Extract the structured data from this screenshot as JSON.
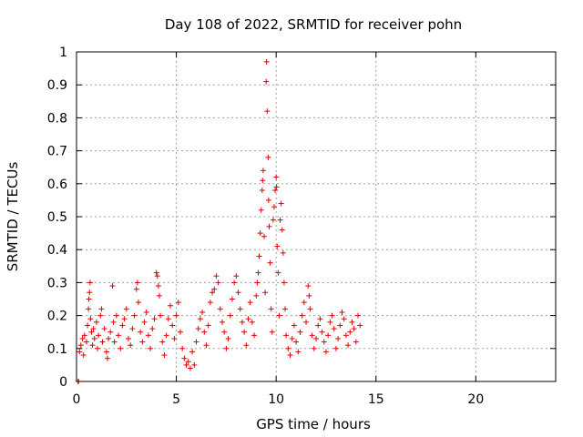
{
  "chart_data": {
    "type": "scatter",
    "title": "Day 108 of 2022, SRMTID for receiver pohn",
    "xlabel": "GPS time / hours",
    "ylabel": "SRMTID / TECUs",
    "xlim": [
      0,
      24
    ],
    "ylim": [
      0,
      1
    ],
    "xticks": [
      0,
      5,
      10,
      15,
      20
    ],
    "xtick_labels": [
      "0",
      "5",
      "10",
      "15",
      "20"
    ],
    "yticks": [
      0,
      0.1,
      0.2,
      0.3,
      0.4,
      0.5,
      0.6,
      0.7,
      0.8,
      0.9,
      1
    ],
    "ytick_labels": [
      "0",
      "0.1",
      "0.2",
      "0.3",
      "0.4",
      "0.5",
      "0.6",
      "0.7",
      "0.8",
      "0.9",
      "1"
    ],
    "grid": true,
    "marker": "+",
    "series_color": "#e00000",
    "series": [
      {
        "name": "SRMTID",
        "points": [
          [
            0.08,
            0.0
          ],
          [
            0.1,
            0.0
          ],
          [
            0.15,
            0.09
          ],
          [
            0.22,
            0.11
          ],
          [
            0.3,
            0.13
          ],
          [
            0.35,
            0.08
          ],
          [
            0.4,
            0.14
          ],
          [
            0.5,
            0.12
          ],
          [
            0.55,
            0.17
          ],
          [
            0.6,
            0.22
          ],
          [
            0.62,
            0.25
          ],
          [
            0.65,
            0.27
          ],
          [
            0.68,
            0.3
          ],
          [
            0.7,
            0.19
          ],
          [
            0.75,
            0.15
          ],
          [
            0.8,
            0.11
          ],
          [
            0.85,
            0.16
          ],
          [
            0.9,
            0.13
          ],
          [
            1.0,
            0.18
          ],
          [
            1.05,
            0.1
          ],
          [
            1.1,
            0.14
          ],
          [
            1.2,
            0.2
          ],
          [
            1.25,
            0.22
          ],
          [
            1.3,
            0.12
          ],
          [
            1.4,
            0.16
          ],
          [
            1.5,
            0.09
          ],
          [
            1.55,
            0.07
          ],
          [
            1.6,
            0.13
          ],
          [
            1.7,
            0.15
          ],
          [
            1.8,
            0.29
          ],
          [
            1.85,
            0.18
          ],
          [
            1.9,
            0.12
          ],
          [
            2.0,
            0.2
          ],
          [
            2.1,
            0.14
          ],
          [
            2.2,
            0.1
          ],
          [
            2.3,
            0.17
          ],
          [
            2.4,
            0.19
          ],
          [
            2.5,
            0.22
          ],
          [
            2.6,
            0.13
          ],
          [
            2.7,
            0.11
          ],
          [
            2.8,
            0.16
          ],
          [
            2.9,
            0.2
          ],
          [
            3.0,
            0.28
          ],
          [
            3.05,
            0.3
          ],
          [
            3.1,
            0.24
          ],
          [
            3.2,
            0.15
          ],
          [
            3.3,
            0.12
          ],
          [
            3.4,
            0.18
          ],
          [
            3.5,
            0.21
          ],
          [
            3.6,
            0.14
          ],
          [
            3.7,
            0.1
          ],
          [
            3.8,
            0.16
          ],
          [
            3.9,
            0.19
          ],
          [
            4.0,
            0.33
          ],
          [
            4.05,
            0.32
          ],
          [
            4.1,
            0.29
          ],
          [
            4.15,
            0.26
          ],
          [
            4.2,
            0.2
          ],
          [
            4.3,
            0.12
          ],
          [
            4.4,
            0.08
          ],
          [
            4.5,
            0.14
          ],
          [
            4.6,
            0.19
          ],
          [
            4.7,
            0.23
          ],
          [
            4.8,
            0.17
          ],
          [
            4.9,
            0.13
          ],
          [
            5.0,
            0.2
          ],
          [
            5.1,
            0.24
          ],
          [
            5.2,
            0.15
          ],
          [
            5.3,
            0.1
          ],
          [
            5.4,
            0.07
          ],
          [
            5.5,
            0.05
          ],
          [
            5.6,
            0.06
          ],
          [
            5.7,
            0.04
          ],
          [
            5.8,
            0.09
          ],
          [
            5.9,
            0.05
          ],
          [
            6.0,
            0.12
          ],
          [
            6.1,
            0.16
          ],
          [
            6.2,
            0.19
          ],
          [
            6.3,
            0.21
          ],
          [
            6.4,
            0.15
          ],
          [
            6.5,
            0.11
          ],
          [
            6.6,
            0.17
          ],
          [
            6.7,
            0.24
          ],
          [
            6.8,
            0.27
          ],
          [
            6.9,
            0.28
          ],
          [
            7.0,
            0.32
          ],
          [
            7.1,
            0.3
          ],
          [
            7.2,
            0.22
          ],
          [
            7.3,
            0.18
          ],
          [
            7.4,
            0.15
          ],
          [
            7.5,
            0.1
          ],
          [
            7.6,
            0.13
          ],
          [
            7.7,
            0.2
          ],
          [
            7.8,
            0.25
          ],
          [
            7.9,
            0.3
          ],
          [
            8.0,
            0.32
          ],
          [
            8.1,
            0.27
          ],
          [
            8.2,
            0.22
          ],
          [
            8.3,
            0.18
          ],
          [
            8.4,
            0.15
          ],
          [
            8.5,
            0.11
          ],
          [
            8.6,
            0.19
          ],
          [
            8.7,
            0.24
          ],
          [
            8.8,
            0.18
          ],
          [
            8.9,
            0.14
          ],
          [
            9.0,
            0.26
          ],
          [
            9.05,
            0.3
          ],
          [
            9.1,
            0.33
          ],
          [
            9.15,
            0.38
          ],
          [
            9.2,
            0.45
          ],
          [
            9.25,
            0.52
          ],
          [
            9.3,
            0.58
          ],
          [
            9.32,
            0.61
          ],
          [
            9.35,
            0.64
          ],
          [
            9.4,
            0.44
          ],
          [
            9.45,
            0.27
          ],
          [
            9.5,
            0.91
          ],
          [
            9.52,
            0.97
          ],
          [
            9.55,
            0.82
          ],
          [
            9.6,
            0.68
          ],
          [
            9.62,
            0.55
          ],
          [
            9.65,
            0.47
          ],
          [
            9.7,
            0.36
          ],
          [
            9.75,
            0.22
          ],
          [
            9.8,
            0.15
          ],
          [
            9.85,
            0.49
          ],
          [
            9.9,
            0.53
          ],
          [
            9.95,
            0.58
          ],
          [
            10.0,
            0.62
          ],
          [
            10.02,
            0.59
          ],
          [
            10.05,
            0.41
          ],
          [
            10.1,
            0.33
          ],
          [
            10.15,
            0.2
          ],
          [
            10.2,
            0.49
          ],
          [
            10.25,
            0.54
          ],
          [
            10.3,
            0.46
          ],
          [
            10.35,
            0.39
          ],
          [
            10.4,
            0.3
          ],
          [
            10.45,
            0.22
          ],
          [
            10.5,
            0.14
          ],
          [
            10.6,
            0.1
          ],
          [
            10.7,
            0.08
          ],
          [
            10.8,
            0.13
          ],
          [
            10.9,
            0.17
          ],
          [
            11.0,
            0.12
          ],
          [
            11.1,
            0.09
          ],
          [
            11.2,
            0.15
          ],
          [
            11.3,
            0.2
          ],
          [
            11.4,
            0.24
          ],
          [
            11.5,
            0.18
          ],
          [
            11.6,
            0.29
          ],
          [
            11.65,
            0.26
          ],
          [
            11.7,
            0.22
          ],
          [
            11.8,
            0.14
          ],
          [
            11.9,
            0.1
          ],
          [
            12.0,
            0.13
          ],
          [
            12.1,
            0.17
          ],
          [
            12.2,
            0.19
          ],
          [
            12.3,
            0.15
          ],
          [
            12.4,
            0.12
          ],
          [
            12.5,
            0.09
          ],
          [
            12.6,
            0.14
          ],
          [
            12.7,
            0.18
          ],
          [
            12.8,
            0.2
          ],
          [
            12.9,
            0.16
          ],
          [
            13.0,
            0.1
          ],
          [
            13.1,
            0.13
          ],
          [
            13.2,
            0.17
          ],
          [
            13.3,
            0.21
          ],
          [
            13.4,
            0.19
          ],
          [
            13.5,
            0.14
          ],
          [
            13.6,
            0.11
          ],
          [
            13.7,
            0.15
          ],
          [
            13.8,
            0.18
          ],
          [
            13.9,
            0.16
          ],
          [
            14.0,
            0.12
          ],
          [
            14.1,
            0.2
          ],
          [
            14.2,
            0.17
          ]
        ]
      }
    ]
  }
}
